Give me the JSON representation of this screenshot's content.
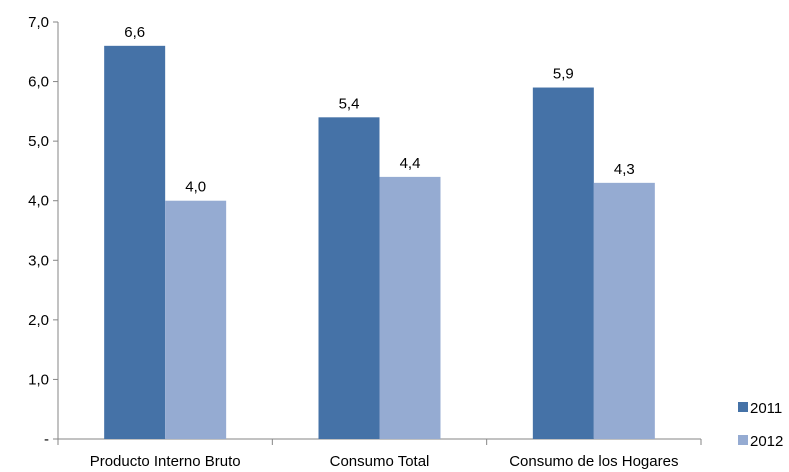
{
  "chart_data": {
    "type": "bar",
    "categories": [
      "Producto Interno Bruto",
      "Consumo Total",
      "Consumo de los Hogares"
    ],
    "series": [
      {
        "name": "2011",
        "values": [
          6.6,
          5.4,
          5.9
        ],
        "color": "#4572A7",
        "labels": [
          "6,6",
          "5,4",
          "5,9"
        ]
      },
      {
        "name": "2012",
        "values": [
          4.0,
          4.4,
          4.3
        ],
        "color": "#95ABD2",
        "labels": [
          "4,0",
          "4,4",
          "4,3"
        ]
      }
    ],
    "ylim": [
      0,
      7
    ],
    "yticks": [
      0,
      1,
      2,
      3,
      4,
      5,
      6,
      7
    ],
    "ytick_labels": [
      "-",
      "1,0",
      "2,0",
      "3,0",
      "4,0",
      "5,0",
      "6,0",
      "7,0"
    ],
    "grid": false,
    "legend_position": "bottom-right",
    "title": "",
    "xlabel": "",
    "ylabel": ""
  }
}
